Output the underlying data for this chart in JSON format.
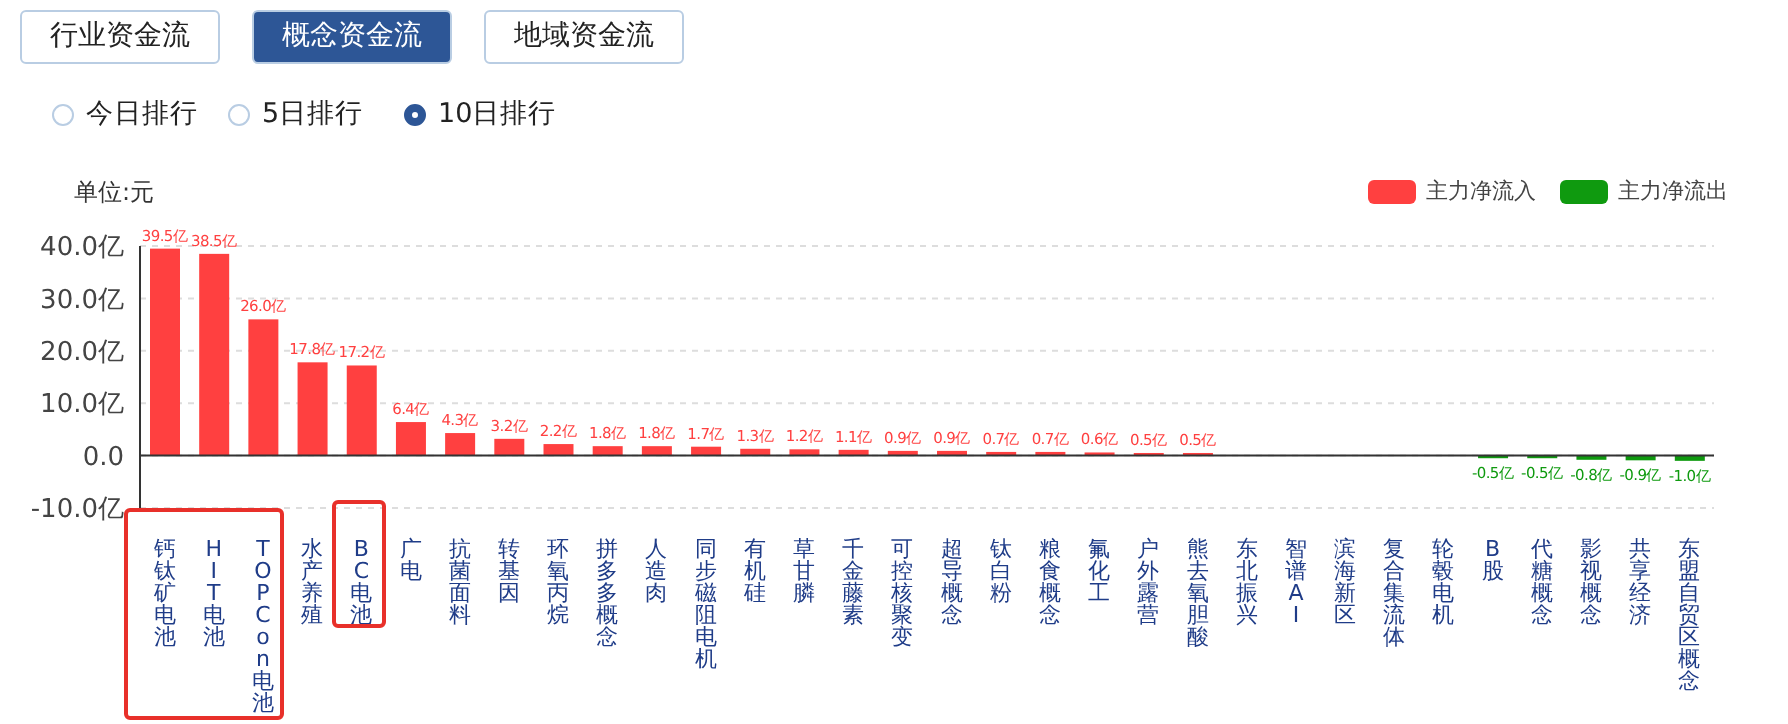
{
  "chart_data": {
    "type": "bar",
    "stacked": true,
    "ylabel": "单位:元",
    "annotations": [
      "行业资金流",
      "概念资金流",
      "地域资金流",
      "今日排行",
      "5日排行",
      "10日排行"
    ],
    "categories": [
      "钙钛矿电池",
      "HIT电池",
      "TOPCon电池",
      "水产养殖",
      "BC电池",
      "广电",
      "抗菌面料",
      "转基因",
      "环氧丙烷",
      "拼多多概念",
      "人造肉",
      "同步磁阻电机",
      "有机硅",
      "草甘膦",
      "千金藤素",
      "可控核聚变",
      "超导概念",
      "钛白粉",
      "粮食概念",
      "氟化工",
      "户外露营",
      "熊去氧胆酸",
      "东北振兴",
      "智谱AI",
      "滨海新区",
      "复合集流体",
      "轮毂电机",
      "B股",
      "代糖概念",
      "影视概念",
      "共享经济",
      "东盟自贸区概念"
    ],
    "series": [
      {
        "name": "主力净流入",
        "color": "#ff4040",
        "values": [
          39.5,
          38.5,
          26.0,
          17.8,
          17.2,
          6.4,
          4.3,
          3.2,
          2.2,
          1.8,
          1.8,
          1.7,
          1.3,
          1.2,
          1.1,
          0.9,
          0.9,
          0.7,
          0.7,
          0.6,
          0.5,
          0.5,
          null,
          null,
          null,
          null,
          null,
          null,
          null,
          null,
          null,
          null
        ],
        "value_labels": [
          "39.5亿",
          "38.5亿",
          "26.0亿",
          "17.8亿",
          "17.2亿",
          "6.4亿",
          "4.3亿",
          "3.2亿",
          "2.2亿",
          "1.8亿",
          "1.8亿",
          "1.7亿",
          "1.3亿",
          "1.2亿",
          "1.1亿",
          "0.9亿",
          "0.9亿",
          "0.7亿",
          "0.7亿",
          "0.6亿",
          "0.5亿",
          "0.5亿",
          null,
          null,
          null,
          null,
          null,
          null,
          null,
          null,
          null,
          null
        ]
      },
      {
        "name": "主力净流出",
        "color": "#0f9a0f",
        "values": [
          null,
          null,
          null,
          null,
          null,
          null,
          null,
          null,
          null,
          null,
          null,
          null,
          null,
          null,
          null,
          null,
          null,
          null,
          null,
          null,
          null,
          null,
          null,
          null,
          null,
          null,
          null,
          -0.5,
          -0.5,
          -0.8,
          -0.9,
          -1.0
        ],
        "value_labels": [
          null,
          null,
          null,
          null,
          null,
          null,
          null,
          null,
          null,
          null,
          null,
          null,
          null,
          null,
          null,
          null,
          null,
          null,
          null,
          null,
          null,
          null,
          null,
          null,
          null,
          null,
          null,
          "-0.5亿",
          "-0.5亿",
          "-0.8亿",
          "-0.9亿",
          "-1.0亿"
        ]
      }
    ],
    "ylim": [
      -10,
      40
    ],
    "yticks": [
      {
        "value": -10,
        "label": "-10.0亿"
      },
      {
        "value": 0,
        "label": "0.0"
      },
      {
        "value": 10,
        "label": "10.0亿"
      },
      {
        "value": 20,
        "label": "20.0亿"
      },
      {
        "value": 30,
        "label": "30.0亿"
      },
      {
        "value": 40,
        "label": "40.0亿"
      }
    ],
    "grid": "y",
    "legend": "top right"
  }
}
